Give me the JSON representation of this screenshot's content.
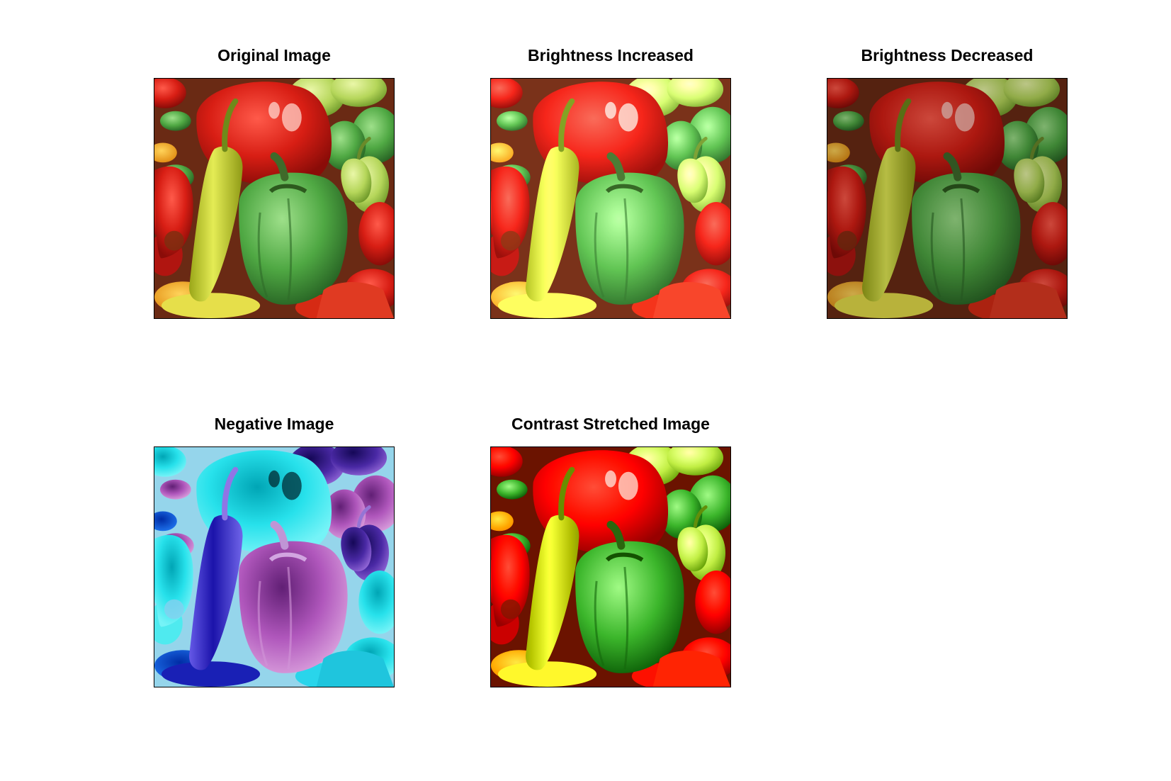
{
  "figure": {
    "subplots": [
      {
        "id": "original",
        "title": "Original Image"
      },
      {
        "id": "bright-inc",
        "title": "Brightness Increased"
      },
      {
        "id": "bright-dec",
        "title": "Brightness Decreased"
      },
      {
        "id": "negative",
        "title": "Negative Image"
      },
      {
        "id": "contrast",
        "title": "Contrast Stretched Image"
      }
    ]
  }
}
